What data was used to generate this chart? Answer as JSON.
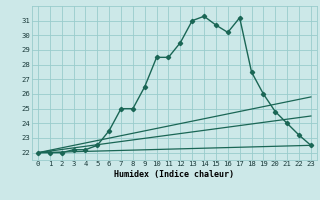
{
  "xlabel": "Humidex (Indice chaleur)",
  "bg_color": "#cce8e8",
  "grid_color": "#99cccc",
  "line_color": "#1a6655",
  "xlim": [
    -0.5,
    23.5
  ],
  "ylim": [
    21.5,
    32.0
  ],
  "yticks": [
    22,
    23,
    24,
    25,
    26,
    27,
    28,
    29,
    30,
    31
  ],
  "xticks": [
    0,
    1,
    2,
    3,
    4,
    5,
    6,
    7,
    8,
    9,
    10,
    11,
    12,
    13,
    14,
    15,
    16,
    17,
    18,
    19,
    20,
    21,
    22,
    23
  ],
  "main_x": [
    0,
    1,
    2,
    3,
    4,
    5,
    6,
    7,
    8,
    9,
    10,
    11,
    12,
    13,
    14,
    15,
    16,
    17,
    18,
    19,
    20,
    21,
    22,
    23
  ],
  "main_y": [
    22,
    22,
    22,
    22.2,
    22.2,
    22.5,
    23.5,
    25.0,
    25.0,
    26.5,
    28.5,
    28.5,
    29.5,
    31.0,
    31.3,
    30.7,
    30.2,
    31.2,
    27.5,
    26.0,
    24.8,
    24.0,
    23.2,
    22.5
  ],
  "line1_x": [
    0,
    23
  ],
  "line1_y": [
    22,
    25.8
  ],
  "line2_x": [
    0,
    23
  ],
  "line2_y": [
    22,
    24.5
  ],
  "line3_x": [
    0,
    23
  ],
  "line3_y": [
    22,
    22.5
  ],
  "tick_fontsize": 5.2,
  "xlabel_fontsize": 6.0
}
